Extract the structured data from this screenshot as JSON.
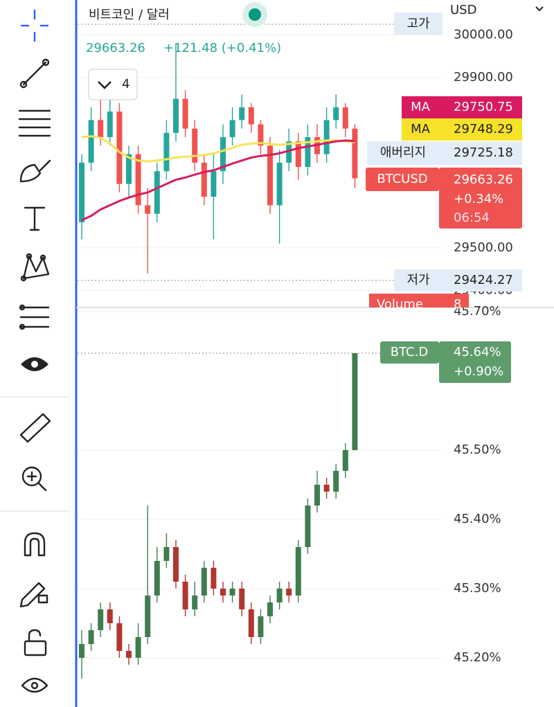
{
  "ui": {
    "symbol": "비트코인 / 달러",
    "price": "29663.26",
    "change": "+121.48 (+0.41%)",
    "interval_count": "4",
    "currency": "USD",
    "high_tag": "고가",
    "low_tag": "저가",
    "low_value": "29424.27",
    "average_tag": "애버리지",
    "average_value": "29725.18",
    "ma1_tag": "MA",
    "ma1_value": "29750.75",
    "ma2_tag": "MA",
    "ma2_value": "29748.29",
    "last_tag": "BTCUSD",
    "last_value": "29663.26",
    "last_change": "+0.34%",
    "countdown": "06:54",
    "volume_tag": "Volume",
    "volume_value": "8",
    "dom_tag": "BTC.D",
    "dom_value": "45.64%",
    "dom_change": "+0.90%"
  },
  "chart_data": [
    {
      "type": "candlestick",
      "up_color": "#26a69a",
      "down_color": "#ef5350",
      "ylim": [
        29360,
        30082
      ],
      "yticks": [
        {
          "value": 30000,
          "label": "30000.00"
        },
        {
          "value": 29900,
          "label": "29900.00"
        },
        {
          "value": 29500,
          "label": "29500.00"
        },
        {
          "value": 29400,
          "label": "29400.00"
        }
      ],
      "open": [
        29560,
        29700,
        29800,
        29760,
        29820,
        29650,
        29720,
        29600,
        29580,
        29680,
        29770,
        29850,
        29780,
        29700,
        29620,
        29680,
        29760,
        29800,
        29830,
        29790,
        29740,
        29600,
        29700,
        29750,
        29690,
        29760,
        29720,
        29800,
        29830,
        29780
      ],
      "high": [
        29720,
        29830,
        29850,
        29850,
        29840,
        29740,
        29740,
        29640,
        29700,
        29800,
        29980,
        29870,
        29800,
        29720,
        29720,
        29790,
        29830,
        29860,
        29840,
        29800,
        29760,
        29730,
        29780,
        29770,
        29790,
        29790,
        29830,
        29860,
        29840,
        29790
      ],
      "low": [
        29520,
        29680,
        29740,
        29740,
        29630,
        29620,
        29580,
        29440,
        29560,
        29660,
        29750,
        29760,
        29680,
        29600,
        29520,
        29650,
        29740,
        29780,
        29770,
        29720,
        29580,
        29510,
        29680,
        29660,
        29670,
        29700,
        29700,
        29780,
        29760,
        29640
      ],
      "close": [
        29700,
        29800,
        29760,
        29820,
        29650,
        29720,
        29600,
        29580,
        29680,
        29770,
        29850,
        29780,
        29700,
        29620,
        29680,
        29760,
        29800,
        29830,
        29790,
        29740,
        29600,
        29700,
        29750,
        29690,
        29760,
        29720,
        29800,
        29830,
        29780,
        29663.26
      ],
      "series": [
        {
          "name": "MA",
          "color": "#f5e35a",
          "values": [
            29760,
            29762,
            29758,
            29745,
            29725,
            29712,
            29705,
            29703,
            29705,
            29708,
            29712,
            29714,
            29716,
            29718,
            29722,
            29728,
            29735,
            29742,
            29745,
            29746,
            29744,
            29742,
            29744,
            29746,
            29748,
            29750,
            29752,
            29752,
            29750,
            29748.29
          ]
        },
        {
          "name": "MA",
          "color": "#d81b60",
          "values": [
            29565,
            29575,
            29590,
            29600,
            29610,
            29618,
            29625,
            29630,
            29640,
            29650,
            29660,
            29665,
            29672,
            29678,
            29682,
            29690,
            29698,
            29705,
            29712,
            29716,
            29718,
            29722,
            29728,
            29734,
            29738,
            29742,
            29746,
            29750,
            29752,
            29750.75
          ]
        }
      ]
    },
    {
      "type": "candlestick",
      "up_color": "#3f7d4f",
      "down_color": "#b0362f",
      "ylim": [
        45.13,
        45.7
      ],
      "yticks": [
        {
          "value": 45.7,
          "label": "45.70%"
        },
        {
          "value": 45.5,
          "label": "45.50%"
        },
        {
          "value": 45.4,
          "label": "45.40%"
        },
        {
          "value": 45.3,
          "label": "45.30%"
        },
        {
          "value": 45.2,
          "label": "45.20%"
        }
      ],
      "open": [
        45.2,
        45.22,
        45.24,
        45.27,
        45.25,
        45.21,
        45.2,
        45.23,
        45.29,
        45.34,
        45.36,
        45.31,
        45.27,
        45.29,
        45.33,
        45.3,
        45.29,
        45.3,
        45.27,
        45.23,
        45.26,
        45.28,
        45.3,
        45.29,
        45.36,
        45.42,
        45.45,
        45.44,
        45.47,
        45.5
      ],
      "high": [
        45.24,
        45.25,
        45.28,
        45.28,
        45.26,
        45.22,
        45.25,
        45.42,
        45.36,
        45.38,
        45.37,
        45.32,
        45.31,
        45.34,
        45.34,
        45.31,
        45.31,
        45.31,
        45.28,
        45.27,
        45.29,
        45.31,
        45.31,
        45.37,
        45.43,
        45.47,
        45.46,
        45.48,
        45.51,
        45.64
      ],
      "low": [
        45.17,
        45.21,
        45.23,
        45.24,
        45.2,
        45.19,
        45.19,
        45.22,
        45.28,
        45.33,
        45.3,
        45.26,
        45.26,
        45.28,
        45.29,
        45.28,
        45.28,
        45.26,
        45.22,
        45.22,
        45.25,
        45.27,
        45.28,
        45.28,
        45.35,
        45.41,
        45.43,
        45.43,
        45.46,
        45.5
      ],
      "close": [
        45.22,
        45.24,
        45.27,
        45.25,
        45.21,
        45.2,
        45.23,
        45.29,
        45.34,
        45.36,
        45.31,
        45.27,
        45.29,
        45.33,
        45.3,
        45.29,
        45.3,
        45.27,
        45.23,
        45.26,
        45.28,
        45.3,
        45.29,
        45.36,
        45.42,
        45.45,
        45.44,
        45.47,
        45.5,
        45.64
      ]
    }
  ]
}
